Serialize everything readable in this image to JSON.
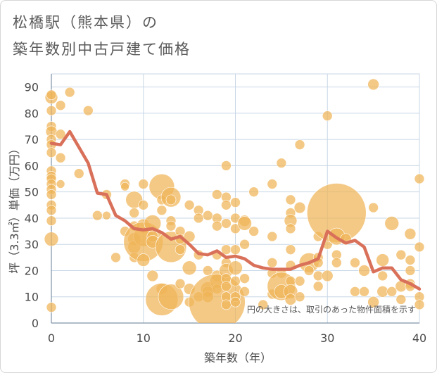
{
  "title_line1": "松橋駅（熊本県）の",
  "title_line2": "築年数別中古戸建て価格",
  "chart_data": {
    "type": "scatter",
    "xlabel": "築年数（年）",
    "ylabel": "坪（3.3㎡）単価（万円）",
    "xlim": [
      0,
      40
    ],
    "ylim": [
      0,
      95
    ],
    "xticks": [
      "0",
      "10",
      "20",
      "30",
      "40"
    ],
    "yticks": [
      "0",
      "10",
      "20",
      "30",
      "40",
      "50",
      "60",
      "70",
      "80",
      "90"
    ],
    "grid": true,
    "annotation": "円の大きさは、取引のあった物件面積を示す",
    "colors": {
      "bubble": "#f0b458",
      "line": "#d9705a",
      "grid": "#c8d7e6"
    },
    "trend_line": {
      "x": [
        0,
        1,
        2,
        3,
        4,
        5,
        6,
        7,
        8,
        9,
        10,
        11,
        12,
        13,
        14,
        15,
        16,
        17,
        18,
        19,
        20,
        21,
        22,
        23,
        24,
        25,
        26,
        27,
        28,
        29,
        30,
        31,
        32,
        33,
        34,
        35,
        36,
        37,
        38,
        39,
        40
      ],
      "y": [
        68.5,
        68,
        73,
        67,
        61,
        49.5,
        49,
        41,
        39,
        36,
        35.5,
        36,
        34.5,
        32,
        33,
        30,
        26.5,
        26,
        27.5,
        25,
        25.5,
        24.5,
        22,
        21,
        20.5,
        20.5,
        20.5,
        22,
        23,
        24.5,
        35,
        32.5,
        30.5,
        31.5,
        29,
        19.5,
        21,
        21,
        16.5,
        15,
        13
      ]
    },
    "bubbles": [
      {
        "x": 0,
        "y": 86,
        "s": 9
      },
      {
        "x": 0,
        "y": 87,
        "s": 7
      },
      {
        "x": 0,
        "y": 81,
        "s": 7
      },
      {
        "x": 0,
        "y": 75,
        "s": 7
      },
      {
        "x": 0,
        "y": 73,
        "s": 8
      },
      {
        "x": 0,
        "y": 70,
        "s": 7
      },
      {
        "x": 0,
        "y": 68,
        "s": 7
      },
      {
        "x": 0,
        "y": 65,
        "s": 7
      },
      {
        "x": 0,
        "y": 58,
        "s": 7
      },
      {
        "x": 0,
        "y": 56,
        "s": 7
      },
      {
        "x": 0,
        "y": 55,
        "s": 7
      },
      {
        "x": 0,
        "y": 53,
        "s": 7
      },
      {
        "x": 0,
        "y": 51,
        "s": 7
      },
      {
        "x": 0,
        "y": 49,
        "s": 7
      },
      {
        "x": 0,
        "y": 45,
        "s": 7
      },
      {
        "x": 0,
        "y": 43,
        "s": 7
      },
      {
        "x": 0,
        "y": 39,
        "s": 7
      },
      {
        "x": 0,
        "y": 32,
        "s": 10
      },
      {
        "x": 0,
        "y": 6,
        "s": 7
      },
      {
        "x": 1,
        "y": 83,
        "s": 7
      },
      {
        "x": 1,
        "y": 72,
        "s": 7
      },
      {
        "x": 1,
        "y": 63,
        "s": 7
      },
      {
        "x": 1,
        "y": 53,
        "s": 6
      },
      {
        "x": 2,
        "y": 88,
        "s": 7
      },
      {
        "x": 3,
        "y": 57,
        "s": 7
      },
      {
        "x": 4,
        "y": 81,
        "s": 7
      },
      {
        "x": 5,
        "y": 41,
        "s": 7
      },
      {
        "x": 6,
        "y": 49,
        "s": 7
      },
      {
        "x": 6,
        "y": 41,
        "s": 6
      },
      {
        "x": 7,
        "y": 25,
        "s": 7
      },
      {
        "x": 8,
        "y": 53,
        "s": 7
      },
      {
        "x": 8,
        "y": 52,
        "s": 6
      },
      {
        "x": 8,
        "y": 35,
        "s": 7
      },
      {
        "x": 9,
        "y": 47,
        "s": 12
      },
      {
        "x": 9,
        "y": 42,
        "s": 7
      },
      {
        "x": 9,
        "y": 37,
        "s": 7
      },
      {
        "x": 9,
        "y": 32,
        "s": 9
      },
      {
        "x": 9,
        "y": 29,
        "s": 9
      },
      {
        "x": 9,
        "y": 25,
        "s": 7
      },
      {
        "x": 10,
        "y": 53,
        "s": 7
      },
      {
        "x": 10,
        "y": 45,
        "s": 7
      },
      {
        "x": 10,
        "y": 37,
        "s": 10
      },
      {
        "x": 10,
        "y": 33,
        "s": 14
      },
      {
        "x": 10,
        "y": 31,
        "s": 28
      },
      {
        "x": 10,
        "y": 24,
        "s": 9
      },
      {
        "x": 11,
        "y": 38,
        "s": 12
      },
      {
        "x": 11,
        "y": 33,
        "s": 8
      },
      {
        "x": 11,
        "y": 31,
        "s": 9
      },
      {
        "x": 11,
        "y": 18,
        "s": 8
      },
      {
        "x": 12,
        "y": 52,
        "s": 18
      },
      {
        "x": 12,
        "y": 47,
        "s": 7
      },
      {
        "x": 12,
        "y": 43,
        "s": 7
      },
      {
        "x": 12,
        "y": 13,
        "s": 8
      },
      {
        "x": 12,
        "y": 9,
        "s": 23
      },
      {
        "x": 13,
        "y": 48,
        "s": 14
      },
      {
        "x": 13,
        "y": 47,
        "s": 7
      },
      {
        "x": 13,
        "y": 39,
        "s": 7
      },
      {
        "x": 13,
        "y": 37,
        "s": 7
      },
      {
        "x": 13,
        "y": 29,
        "s": 22
      },
      {
        "x": 13,
        "y": 10,
        "s": 18
      },
      {
        "x": 14,
        "y": 35,
        "s": 7
      },
      {
        "x": 14,
        "y": 32,
        "s": 7
      },
      {
        "x": 14,
        "y": 28,
        "s": 7
      },
      {
        "x": 14,
        "y": 15,
        "s": 7
      },
      {
        "x": 15,
        "y": 45,
        "s": 7
      },
      {
        "x": 15,
        "y": 33,
        "s": 8
      },
      {
        "x": 15,
        "y": 21,
        "s": 10
      },
      {
        "x": 15,
        "y": 13,
        "s": 8
      },
      {
        "x": 15,
        "y": 8,
        "s": 7
      },
      {
        "x": 16,
        "y": 43,
        "s": 7
      },
      {
        "x": 16,
        "y": 40,
        "s": 7
      },
      {
        "x": 16,
        "y": 26,
        "s": 7
      },
      {
        "x": 16,
        "y": 10,
        "s": 7
      },
      {
        "x": 17,
        "y": 41,
        "s": 7
      },
      {
        "x": 17,
        "y": 20,
        "s": 7
      },
      {
        "x": 17,
        "y": 13,
        "s": 10
      },
      {
        "x": 17,
        "y": 12,
        "s": 8
      },
      {
        "x": 17,
        "y": 10,
        "s": 8
      },
      {
        "x": 18,
        "y": 49,
        "s": 7
      },
      {
        "x": 18,
        "y": 40,
        "s": 7
      },
      {
        "x": 18,
        "y": 37,
        "s": 7
      },
      {
        "x": 18,
        "y": 26,
        "s": 7
      },
      {
        "x": 18,
        "y": 18,
        "s": 8
      },
      {
        "x": 18,
        "y": 16,
        "s": 10
      },
      {
        "x": 18,
        "y": 13,
        "s": 7
      },
      {
        "x": 18,
        "y": 8,
        "s": 40
      },
      {
        "x": 19,
        "y": 60,
        "s": 7
      },
      {
        "x": 19,
        "y": 48,
        "s": 7
      },
      {
        "x": 19,
        "y": 45,
        "s": 7
      },
      {
        "x": 19,
        "y": 38,
        "s": 7
      },
      {
        "x": 19,
        "y": 28,
        "s": 7
      },
      {
        "x": 19,
        "y": 23,
        "s": 7
      },
      {
        "x": 19,
        "y": 20,
        "s": 10
      },
      {
        "x": 19,
        "y": 17,
        "s": 7
      },
      {
        "x": 19,
        "y": 14,
        "s": 7
      },
      {
        "x": 19,
        "y": 10,
        "s": 7
      },
      {
        "x": 19,
        "y": 7,
        "s": 7
      },
      {
        "x": 20,
        "y": 46,
        "s": 7
      },
      {
        "x": 20,
        "y": 40,
        "s": 7
      },
      {
        "x": 20,
        "y": 36,
        "s": 7
      },
      {
        "x": 20,
        "y": 28,
        "s": 7
      },
      {
        "x": 20,
        "y": 21,
        "s": 10
      },
      {
        "x": 20,
        "y": 16,
        "s": 7
      },
      {
        "x": 20,
        "y": 10,
        "s": 7
      },
      {
        "x": 20,
        "y": 8,
        "s": 7
      },
      {
        "x": 21,
        "y": 39,
        "s": 8
      },
      {
        "x": 21,
        "y": 38,
        "s": 10
      },
      {
        "x": 21,
        "y": 30,
        "s": 7
      },
      {
        "x": 21,
        "y": 17,
        "s": 7
      },
      {
        "x": 21,
        "y": 12,
        "s": 7
      },
      {
        "x": 22,
        "y": 50,
        "s": 7
      },
      {
        "x": 22,
        "y": 35,
        "s": 7
      },
      {
        "x": 23,
        "y": 7,
        "s": 7
      },
      {
        "x": 24,
        "y": 53,
        "s": 7
      },
      {
        "x": 24,
        "y": 33,
        "s": 7
      },
      {
        "x": 24,
        "y": 23,
        "s": 7
      },
      {
        "x": 24,
        "y": 19,
        "s": 7
      },
      {
        "x": 24,
        "y": 11,
        "s": 7
      },
      {
        "x": 25,
        "y": 61,
        "s": 7
      },
      {
        "x": 25,
        "y": 19,
        "s": 7
      },
      {
        "x": 25,
        "y": 14,
        "s": 20
      },
      {
        "x": 25,
        "y": 12,
        "s": 10
      },
      {
        "x": 26,
        "y": 47,
        "s": 7
      },
      {
        "x": 26,
        "y": 42,
        "s": 7
      },
      {
        "x": 26,
        "y": 39,
        "s": 9
      },
      {
        "x": 26,
        "y": 36,
        "s": 7
      },
      {
        "x": 26,
        "y": 28,
        "s": 7
      },
      {
        "x": 26,
        "y": 22,
        "s": 7
      },
      {
        "x": 26,
        "y": 16,
        "s": 7
      },
      {
        "x": 26,
        "y": 12,
        "s": 10
      },
      {
        "x": 26,
        "y": 9,
        "s": 8
      },
      {
        "x": 27,
        "y": 68,
        "s": 7
      },
      {
        "x": 27,
        "y": 44,
        "s": 8
      },
      {
        "x": 27,
        "y": 16,
        "s": 7
      },
      {
        "x": 27,
        "y": 10,
        "s": 7
      },
      {
        "x": 28,
        "y": 23,
        "s": 14
      },
      {
        "x": 28,
        "y": 20,
        "s": 7
      },
      {
        "x": 29,
        "y": 33,
        "s": 7
      },
      {
        "x": 29,
        "y": 25,
        "s": 7
      },
      {
        "x": 29,
        "y": 23,
        "s": 7
      },
      {
        "x": 29,
        "y": 18,
        "s": 7
      },
      {
        "x": 29,
        "y": 14,
        "s": 7
      },
      {
        "x": 30,
        "y": 79,
        "s": 7
      },
      {
        "x": 30,
        "y": 30,
        "s": 7
      },
      {
        "x": 30,
        "y": 18,
        "s": 8
      },
      {
        "x": 31,
        "y": 42,
        "s": 42
      },
      {
        "x": 31,
        "y": 33,
        "s": 12
      },
      {
        "x": 31,
        "y": 26,
        "s": 7
      },
      {
        "x": 31,
        "y": 23,
        "s": 7
      },
      {
        "x": 32,
        "y": 32,
        "s": 8
      },
      {
        "x": 33,
        "y": 23,
        "s": 7
      },
      {
        "x": 33,
        "y": 12,
        "s": 7
      },
      {
        "x": 34,
        "y": 20,
        "s": 8
      },
      {
        "x": 34,
        "y": 12,
        "s": 7
      },
      {
        "x": 35,
        "y": 91,
        "s": 8
      },
      {
        "x": 35,
        "y": 44,
        "s": 7
      },
      {
        "x": 35,
        "y": 8,
        "s": 8
      },
      {
        "x": 36,
        "y": 24,
        "s": 9
      },
      {
        "x": 36,
        "y": 18,
        "s": 7
      },
      {
        "x": 36,
        "y": 12,
        "s": 8
      },
      {
        "x": 37,
        "y": 38,
        "s": 10
      },
      {
        "x": 37,
        "y": 12,
        "s": 7
      },
      {
        "x": 38,
        "y": 26,
        "s": 7
      },
      {
        "x": 38,
        "y": 14,
        "s": 8
      },
      {
        "x": 38,
        "y": 9,
        "s": 7
      },
      {
        "x": 39,
        "y": 34,
        "s": 8
      },
      {
        "x": 39,
        "y": 24,
        "s": 7
      },
      {
        "x": 39,
        "y": 20,
        "s": 7
      },
      {
        "x": 39,
        "y": 15,
        "s": 7
      },
      {
        "x": 39,
        "y": 14,
        "s": 7
      },
      {
        "x": 40,
        "y": 55,
        "s": 7
      },
      {
        "x": 40,
        "y": 29,
        "s": 7
      },
      {
        "x": 40,
        "y": 10,
        "s": 7
      },
      {
        "x": 40,
        "y": 7,
        "s": 7
      }
    ]
  }
}
